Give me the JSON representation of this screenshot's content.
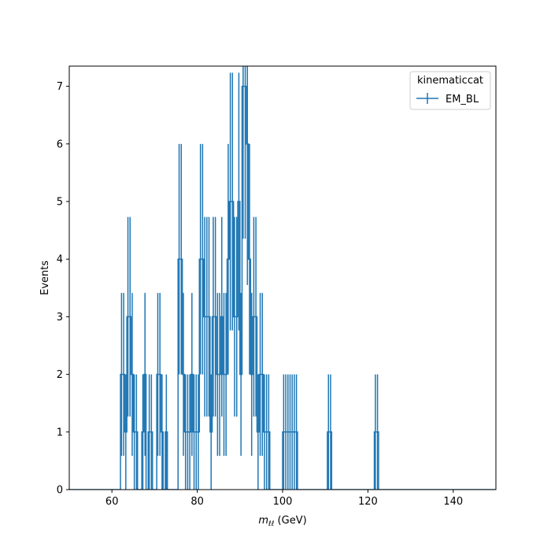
{
  "chart_data": {
    "type": "step-histogram",
    "ylabel": "Events",
    "xlabel_main": "m",
    "xlabel_sub": "ℓℓ",
    "xlabel_unit": " (GeV)",
    "xlim": [
      50,
      150
    ],
    "ylim": [
      0,
      7.35
    ],
    "xticks": [
      60,
      80,
      100,
      120,
      140
    ],
    "yticks": [
      0,
      1,
      2,
      3,
      4,
      5,
      6,
      7
    ],
    "legend_title": "kinematiccat",
    "legend_placement": "top-right",
    "color": "#1f77b4",
    "series": [
      {
        "name": "EM_BL",
        "bin_start": 50,
        "bin_width": 0.5,
        "counts": [
          0,
          0,
          0,
          0,
          0,
          0,
          0,
          0,
          0,
          0,
          0,
          0,
          0,
          0,
          0,
          0,
          0,
          0,
          0,
          0,
          0,
          0,
          0,
          0,
          2,
          2,
          1,
          3,
          3,
          2,
          1,
          1,
          0,
          0,
          1,
          2,
          0,
          1,
          1,
          0,
          0,
          2,
          2,
          1,
          0,
          1,
          0,
          0,
          0,
          0,
          0,
          4,
          4,
          2,
          1,
          1,
          1,
          2,
          1,
          1,
          1,
          4,
          4,
          3,
          3,
          3,
          1,
          3,
          3,
          2,
          2,
          3,
          2,
          2,
          4,
          5,
          5,
          3,
          3,
          5,
          2,
          7,
          7,
          6,
          4,
          2,
          3,
          3,
          1,
          2,
          2,
          1,
          1,
          1,
          0,
          0,
          0,
          0,
          0,
          0,
          1,
          1,
          1,
          1,
          1,
          1,
          1,
          0,
          0,
          0,
          0,
          0,
          0,
          0,
          0,
          0,
          0,
          0,
          0,
          0,
          0,
          1,
          1,
          0,
          0,
          0,
          0,
          0,
          0,
          0,
          0,
          0,
          0,
          0,
          0,
          0,
          0,
          0,
          0,
          0,
          0,
          0,
          0,
          1,
          1,
          0,
          0,
          0,
          0,
          0,
          0,
          0,
          0,
          0,
          0,
          0,
          0,
          0,
          0,
          0,
          0,
          0,
          0,
          0,
          0,
          0,
          0,
          0,
          0,
          0,
          0,
          0,
          0,
          0,
          0,
          0,
          0,
          0,
          0,
          0,
          0,
          0,
          0,
          0,
          0,
          0,
          0,
          0,
          0,
          0,
          0,
          0,
          0,
          0,
          0,
          0,
          0,
          0,
          0,
          0
        ]
      }
    ]
  }
}
